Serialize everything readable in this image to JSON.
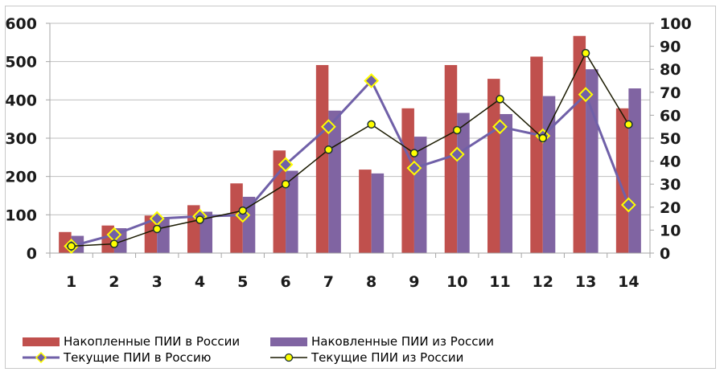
{
  "chart_data": {
    "type": "bar+line",
    "title": "",
    "categories": [
      "1",
      "2",
      "3",
      "4",
      "5",
      "6",
      "7",
      "8",
      "9",
      "10",
      "11",
      "12",
      "13",
      "14"
    ],
    "left_axis": {
      "min": 0,
      "max": 600,
      "ticks": [
        0,
        100,
        200,
        300,
        400,
        500,
        600
      ],
      "label": ""
    },
    "right_axis": {
      "min": 0,
      "max": 100,
      "ticks": [
        0,
        10,
        20,
        30,
        40,
        50,
        60,
        70,
        80,
        90,
        100
      ],
      "label": ""
    },
    "grid": "horizontal (left axis)",
    "legend_position": "bottom",
    "series": [
      {
        "name": "Накопленные ПИИ в России",
        "type": "bar",
        "axis": "left",
        "color": "#c0504d",
        "values": [
          55,
          72,
          98,
          125,
          182,
          268,
          491,
          218,
          378,
          491,
          455,
          513,
          567,
          378
        ]
      },
      {
        "name": "Наковленные ПИИ из России",
        "type": "bar",
        "axis": "left",
        "color": "#8064a2",
        "values": [
          45,
          65,
          92,
          108,
          147,
          215,
          372,
          208,
          304,
          366,
          363,
          410,
          480,
          430
        ]
      },
      {
        "name": "Текущие ПИИ в Россию",
        "type": "line",
        "axis": "right",
        "color": "#7060a8",
        "marker": "diamond",
        "marker_fill": "#7060a8",
        "marker_edge": "#ffff00",
        "values": [
          3,
          8,
          15,
          16,
          16.5,
          38.5,
          55,
          75,
          37,
          43,
          55,
          51,
          69,
          21
        ]
      },
      {
        "name": "Текущие ПИИ из России",
        "type": "line",
        "axis": "right",
        "color": "#1a1a00",
        "marker": "circle",
        "marker_fill": "#ffff00",
        "marker_edge": "#1a3030",
        "values": [
          3,
          4,
          10.5,
          14.5,
          18.5,
          30,
          45,
          56,
          43.5,
          53.5,
          67,
          50,
          87,
          56
        ]
      }
    ]
  },
  "legend": {
    "items": [
      {
        "label": "Накопленные ПИИ в России"
      },
      {
        "label": "Наковленные ПИИ из России"
      },
      {
        "label": "Текущие ПИИ в Россию"
      },
      {
        "label": "Текущие ПИИ из России"
      }
    ]
  }
}
